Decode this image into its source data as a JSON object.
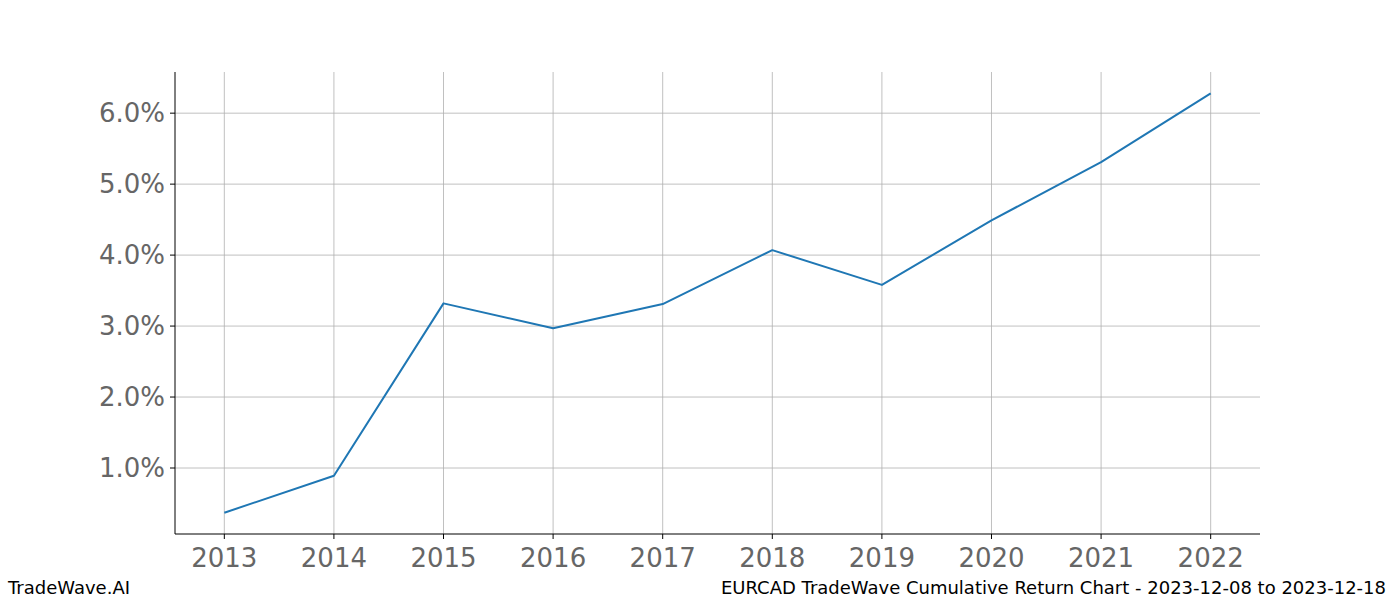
{
  "chart_data": {
    "type": "line",
    "title": "EURCAD TradeWave Cumulative Return Chart - 2023-12-08 to 2023-12-18",
    "source": "TradeWave.AI",
    "x": [
      2013,
      2014,
      2015,
      2016,
      2017,
      2018,
      2019,
      2020,
      2021,
      2022
    ],
    "values": [
      0.37,
      0.89,
      3.32,
      2.97,
      3.31,
      4.07,
      3.58,
      4.49,
      5.31,
      6.28
    ],
    "color": "#1f77b4",
    "xlim": [
      2012.55,
      2022.45
    ],
    "xticks": [
      2013,
      2014,
      2015,
      2016,
      2017,
      2018,
      2019,
      2020,
      2021,
      2022
    ],
    "ylim": [
      0.07,
      6.58
    ],
    "yticks": [
      {
        "value": 1,
        "label": "1.0%"
      },
      {
        "value": 2,
        "label": "2.0%"
      },
      {
        "value": 3,
        "label": "3.0%"
      },
      {
        "value": 4,
        "label": "4.0%"
      },
      {
        "value": 5,
        "label": "5.0%"
      },
      {
        "value": 6,
        "label": "6.0%"
      }
    ],
    "grid": true
  }
}
